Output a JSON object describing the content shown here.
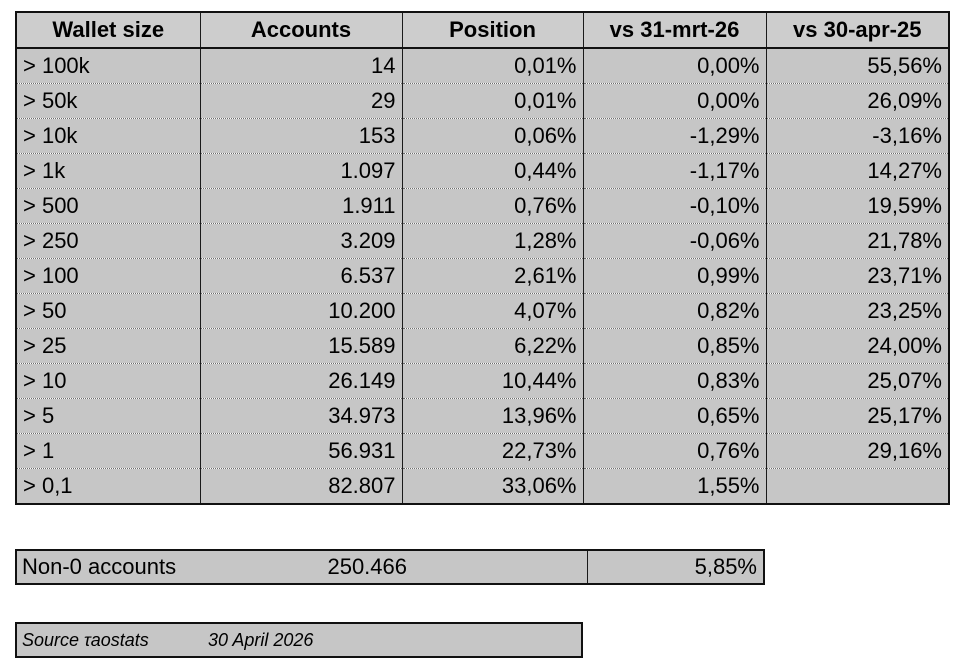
{
  "table": {
    "headers": [
      "Wallet size",
      "Accounts",
      "Position",
      "vs 31-mrt-26",
      "vs 30-apr-25"
    ],
    "rows": [
      [
        "> 100k",
        "14",
        "0,01%",
        "0,00%",
        "55,56%"
      ],
      [
        "> 50k",
        "29",
        "0,01%",
        "0,00%",
        "26,09%"
      ],
      [
        "> 10k",
        "153",
        "0,06%",
        "-1,29%",
        "-3,16%"
      ],
      [
        "> 1k",
        "1.097",
        "0,44%",
        "-1,17%",
        "14,27%"
      ],
      [
        "> 500",
        "1.911",
        "0,76%",
        "-0,10%",
        "19,59%"
      ],
      [
        "> 250",
        "3.209",
        "1,28%",
        "-0,06%",
        "21,78%"
      ],
      [
        "> 100",
        "6.537",
        "2,61%",
        "0,99%",
        "23,71%"
      ],
      [
        "> 50",
        "10.200",
        "4,07%",
        "0,82%",
        "23,25%"
      ],
      [
        "> 25",
        "15.589",
        "6,22%",
        "0,85%",
        "24,00%"
      ],
      [
        "> 10",
        "26.149",
        "10,44%",
        "0,83%",
        "25,07%"
      ],
      [
        "> 5",
        "34.973",
        "13,96%",
        "0,65%",
        "25,17%"
      ],
      [
        "> 1",
        "56.931",
        "22,73%",
        "0,76%",
        "29,16%"
      ],
      [
        "> 0,1",
        "82.807",
        "33,06%",
        "1,55%",
        ""
      ]
    ]
  },
  "summary": {
    "label": "Non-0 accounts",
    "value": "250.466",
    "change": "5,85%"
  },
  "source": {
    "label": "Source τaostats",
    "date": "30 April 2026"
  },
  "colors": {
    "cell_fill": "#c6c6c6",
    "border": "#111111"
  }
}
